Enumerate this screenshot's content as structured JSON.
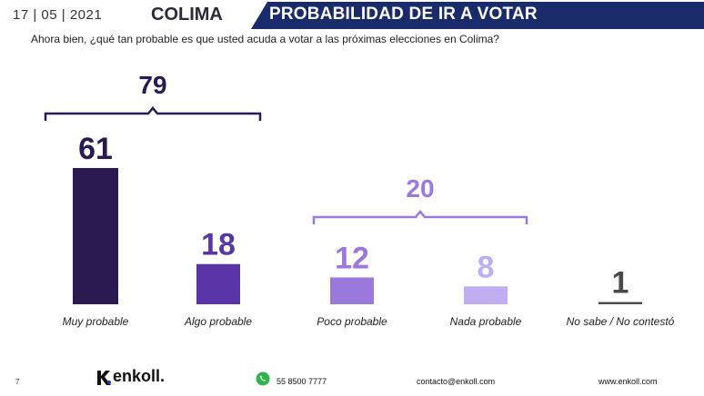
{
  "header": {
    "date": "17 | 05 | 2021",
    "state": "COLIMA",
    "title": "PROBABILIDAD DE IR A VOTAR"
  },
  "question": "Ahora bien, ¿qué tan probable es que usted acuda a votar a las próximas elecciones en Colima?",
  "chart_data": {
    "type": "bar",
    "categories": [
      "Muy probable",
      "Algo probable",
      "Poco probable",
      "Nada probable",
      "No sabe / No contestó"
    ],
    "values": [
      61,
      18,
      12,
      8,
      1
    ],
    "colors": [
      "#2b1a52",
      "#5a35a8",
      "#9a78dc",
      "#c1aef0",
      "#4a4a4a"
    ],
    "label_colors": [
      "#2b1a52",
      "#5a35a8",
      "#9a78dc",
      "#c1aef0",
      "#4a4a4a"
    ],
    "groups": [
      {
        "label": "79",
        "from": 0,
        "to": 1,
        "color": "#2b1a52"
      },
      {
        "label": "20",
        "from": 2,
        "to": 3,
        "color": "#9a78dc"
      }
    ],
    "ylim": [
      0,
      61
    ],
    "grid": false
  },
  "footer": {
    "page": "7",
    "logo": "enkoll.",
    "phone": "55 8500 7777",
    "email": "contacto@enkoll.com",
    "web": "www.enkoll.com"
  }
}
